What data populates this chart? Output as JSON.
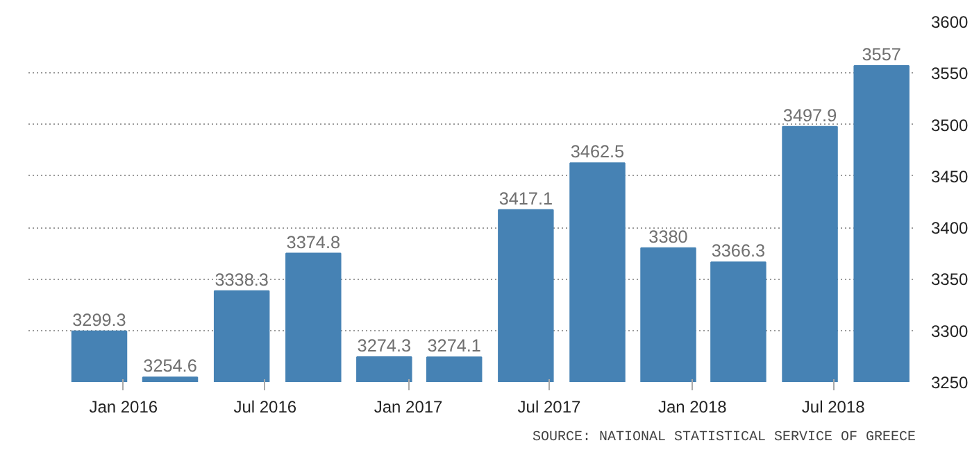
{
  "chart_data": {
    "type": "bar",
    "x": [
      "2015-12",
      "2016-03",
      "2016-06",
      "2016-09",
      "2016-12",
      "2017-03",
      "2017-06",
      "2017-09",
      "2017-12",
      "2018-03",
      "2018-06",
      "2018-09"
    ],
    "values": [
      3299.3,
      3254.6,
      3338.3,
      3374.8,
      3274.3,
      3274.1,
      3417.1,
      3462.5,
      3380,
      3366.3,
      3497.9,
      3557
    ],
    "color": "#4682b4",
    "data_labels": true,
    "xlim": [
      "2015-09-01",
      "2018-10-15"
    ],
    "xticks": [
      {
        "value": "2016-01-01",
        "label": "Jan 2016"
      },
      {
        "value": "2016-07-01",
        "label": "Jul 2016"
      },
      {
        "value": "2017-01-01",
        "label": "Jan 2017"
      },
      {
        "value": "2017-07-01",
        "label": "Jul 2017"
      },
      {
        "value": "2018-01-01",
        "label": "Jan 2018"
      },
      {
        "value": "2018-07-01",
        "label": "Jul 2018"
      }
    ],
    "ylim": [
      3250,
      3600
    ],
    "yticks": [
      3250,
      3300,
      3350,
      3400,
      3450,
      3500,
      3550,
      3600
    ],
    "grid": "y",
    "annotations": [
      "SOURCE: NATIONAL STATISTICAL SERVICE OF GREECE"
    ]
  }
}
